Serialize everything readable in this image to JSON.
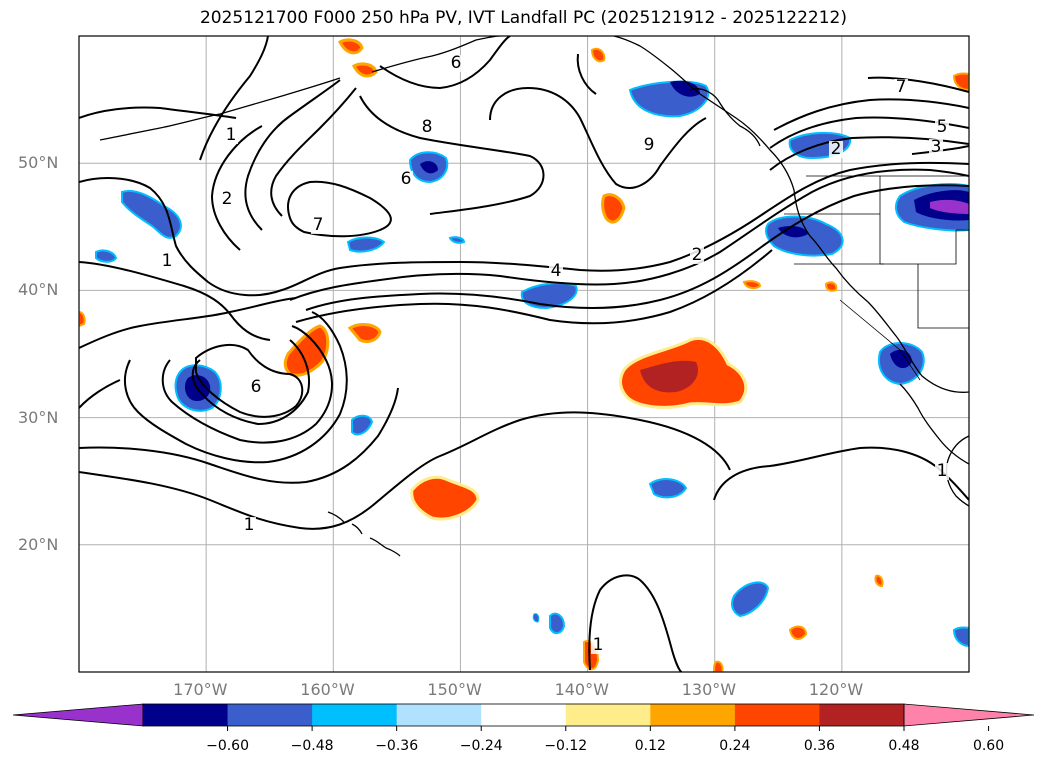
{
  "title": "2025121700 F000 250 hPa PV, IVT Landfall PC (2025121912 - 2025122212)",
  "map": {
    "projection": "equirectangular",
    "lon_range": [
      -180,
      -110
    ],
    "lat_range": [
      10,
      60
    ],
    "lat_ticks": [
      {
        "value": 20,
        "label": "20°N"
      },
      {
        "value": 30,
        "label": "30°N"
      },
      {
        "value": 40,
        "label": "40°N"
      },
      {
        "value": 50,
        "label": "50°N"
      }
    ],
    "lon_ticks": [
      {
        "value": -170,
        "label": "170°W"
      },
      {
        "value": -160,
        "label": "160°W"
      },
      {
        "value": -150,
        "label": "150°W"
      },
      {
        "value": -140,
        "label": "140°W"
      },
      {
        "value": -130,
        "label": "130°W"
      },
      {
        "value": -120,
        "label": "120°W"
      }
    ],
    "grid": true,
    "contour_labels": [
      "1",
      "2",
      "1",
      "7",
      "6",
      "8",
      "9",
      "4",
      "2",
      "7",
      "5",
      "3",
      "2",
      "6",
      "1",
      "1",
      "1",
      "6"
    ]
  },
  "colorbar": {
    "ticks": [
      "−0.60",
      "−0.48",
      "−0.36",
      "−0.24",
      "−0.12",
      "0.12",
      "0.24",
      "0.36",
      "0.48",
      "0.60"
    ],
    "colors": [
      "#9932cc",
      "#00008b",
      "#3a5fcd",
      "#00bfff",
      "#b0e2ff",
      "#ffffff",
      "#ffec8b",
      "#ffa500",
      "#ff4500",
      "#b22222",
      "#ff82ab"
    ]
  }
}
